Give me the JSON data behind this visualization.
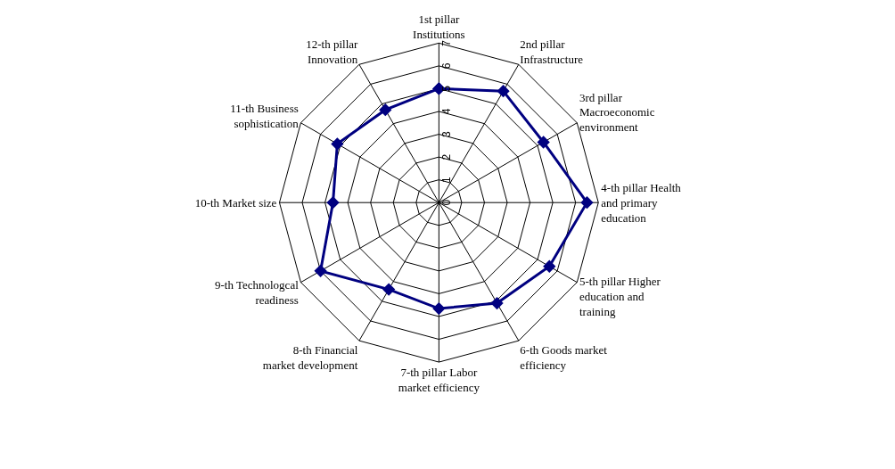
{
  "chart_data": {
    "type": "radar",
    "categories": [
      "1st pillar Institutions",
      "2nd pillar Infrastructure",
      "3rd pillar Macroeconomic environment",
      "4-th pillar Health and primary education",
      "5-th pillar Higher education and training",
      "6-th Goods market efficiency",
      "7-th pillar Labor market efficiency",
      "8-th Financial market development",
      "9-th Technologcal readiness",
      "10-th Market size",
      "11-th Business sophistication",
      "12-th pillar Innovation"
    ],
    "series": [
      {
        "color": "#000080",
        "values": [
          5.0,
          5.65,
          5.3,
          6.5,
          5.6,
          5.1,
          4.65,
          4.4,
          6.0,
          4.65,
          5.15,
          4.7
        ]
      }
    ],
    "ylim": [
      0,
      7
    ],
    "yticks": [
      0,
      1,
      2,
      3,
      4,
      5,
      6,
      7
    ],
    "grid": true,
    "marker": "diamond",
    "line_style": "solid",
    "legend": false
  }
}
